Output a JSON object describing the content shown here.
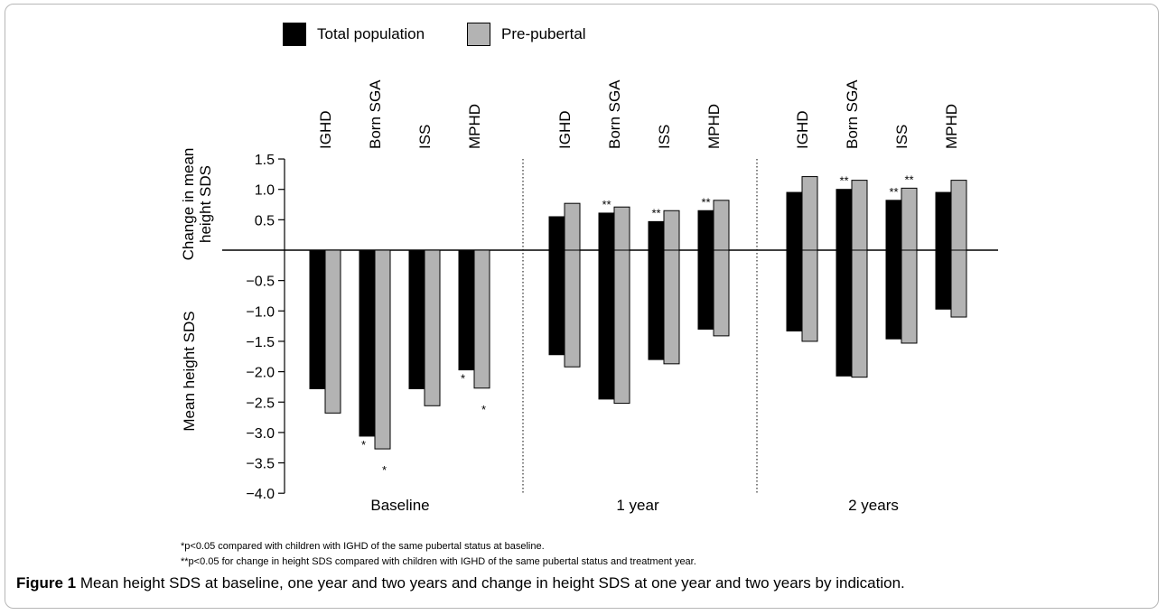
{
  "legend": [
    {
      "label": "Total population",
      "color": "#000000"
    },
    {
      "label": "Pre-pubertal",
      "color": "#b3b3b3"
    }
  ],
  "footnotes": [
    "*p<0.05 compared with children with IGHD of the same pubertal status at baseline.",
    "**p<0.05 for change in height SDS compared with children with IGHD of the same pubertal status and treatment year."
  ],
  "caption": {
    "label": "Figure 1",
    "text": "Mean height SDS at baseline, one year and two years and change in height SDS at one year and two years by indication."
  },
  "chart_data": {
    "type": "bar",
    "ylabel_upper": "Change in mean height SDS",
    "ylabel_lower": "Mean height SDS",
    "ylim": [
      -4.0,
      1.5
    ],
    "yticks": [
      "1.5",
      "1.0",
      "0.5",
      "−0.5",
      "−1.0",
      "−1.5",
      "−2.0",
      "−2.5",
      "−3.0",
      "−3.5",
      "−4.0"
    ],
    "series": [
      {
        "name": "Total population",
        "color": "#000000"
      },
      {
        "name": "Pre-pubertal",
        "color": "#b3b3b3"
      }
    ],
    "groups": [
      {
        "label": "Baseline",
        "categories": [
          {
            "name": "IGHD",
            "mean_height": [
              -2.28,
              -2.68
            ],
            "change": null,
            "mean_sig": [
              "",
              ""
            ],
            "change_sig": [
              "",
              ""
            ]
          },
          {
            "name": "Born SGA",
            "mean_height": [
              -3.06,
              -3.27
            ],
            "change": null,
            "mean_sig": [
              "*",
              "*"
            ],
            "change_sig": [
              "",
              ""
            ]
          },
          {
            "name": "ISS",
            "mean_height": [
              -2.28,
              -2.56
            ],
            "change": null,
            "mean_sig": [
              "",
              ""
            ],
            "change_sig": [
              "",
              ""
            ]
          },
          {
            "name": "MPHD",
            "mean_height": [
              -1.97,
              -2.27
            ],
            "change": null,
            "mean_sig": [
              "*",
              "*"
            ],
            "change_sig": [
              "",
              ""
            ]
          }
        ]
      },
      {
        "label": "1 year",
        "categories": [
          {
            "name": "IGHD",
            "mean_height": [
              -1.72,
              -1.92
            ],
            "change": [
              0.55,
              0.77
            ],
            "mean_sig": [
              "",
              ""
            ],
            "change_sig": [
              "",
              ""
            ]
          },
          {
            "name": "Born SGA",
            "mean_height": [
              -2.45,
              -2.52
            ],
            "change": [
              0.61,
              0.71
            ],
            "mean_sig": [
              "",
              ""
            ],
            "change_sig": [
              "**",
              ""
            ]
          },
          {
            "name": "ISS",
            "mean_height": [
              -1.8,
              -1.87
            ],
            "change": [
              0.47,
              0.65
            ],
            "mean_sig": [
              "",
              ""
            ],
            "change_sig": [
              "**",
              ""
            ]
          },
          {
            "name": "MPHD",
            "mean_height": [
              -1.3,
              -1.41
            ],
            "change": [
              0.65,
              0.82
            ],
            "mean_sig": [
              "",
              ""
            ],
            "change_sig": [
              "**",
              ""
            ]
          }
        ]
      },
      {
        "label": "2 years",
        "categories": [
          {
            "name": "IGHD",
            "mean_height": [
              -1.33,
              -1.5
            ],
            "change": [
              0.95,
              1.21
            ],
            "mean_sig": [
              "",
              ""
            ],
            "change_sig": [
              "",
              ""
            ]
          },
          {
            "name": "Born SGA",
            "mean_height": [
              -2.07,
              -2.09
            ],
            "change": [
              1.0,
              1.15
            ],
            "mean_sig": [
              "",
              ""
            ],
            "change_sig": [
              "**",
              ""
            ]
          },
          {
            "name": "ISS",
            "mean_height": [
              -1.46,
              -1.53
            ],
            "change": [
              0.82,
              1.02
            ],
            "mean_sig": [
              "",
              ""
            ],
            "change_sig": [
              "**",
              "**"
            ]
          },
          {
            "name": "MPHD",
            "mean_height": [
              -0.97,
              -1.1
            ],
            "change": [
              0.95,
              1.15
            ],
            "mean_sig": [
              "",
              ""
            ],
            "change_sig": [
              "",
              ""
            ]
          }
        ]
      }
    ]
  }
}
